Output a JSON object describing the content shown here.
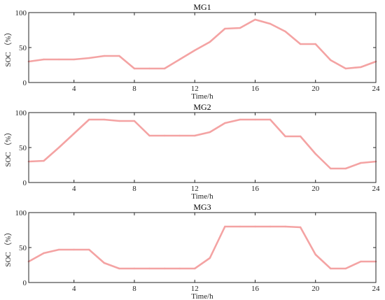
{
  "figure": {
    "line_color": "#F4A3A3"
  },
  "chart_data": [
    {
      "type": "line",
      "title": "MG1",
      "xlabel": "Time/h",
      "ylabel": "SOC （%）",
      "xlim": [
        1,
        24
      ],
      "ylim": [
        0,
        100
      ],
      "xticks": [
        4,
        8,
        12,
        16,
        20,
        24
      ],
      "yticks": [
        0,
        50,
        100
      ],
      "grid": false,
      "x": [
        1,
        2,
        3,
        4,
        5,
        6,
        7,
        8,
        9,
        10,
        11,
        12,
        13,
        14,
        15,
        16,
        17,
        18,
        19,
        20,
        21,
        22,
        23,
        24
      ],
      "series": [
        {
          "values": [
            30,
            33,
            33,
            33,
            35,
            38,
            38,
            20,
            20,
            20,
            33,
            46,
            58,
            77,
            78,
            90,
            84,
            73,
            55,
            55,
            32,
            20,
            22,
            30
          ]
        }
      ]
    },
    {
      "type": "line",
      "title": "MG2",
      "xlabel": "Time/h",
      "ylabel": "SOC （%）",
      "xlim": [
        1,
        24
      ],
      "ylim": [
        0,
        100
      ],
      "xticks": [
        4,
        8,
        12,
        16,
        20,
        24
      ],
      "yticks": [
        0,
        50,
        100
      ],
      "grid": false,
      "x": [
        1,
        2,
        3,
        4,
        5,
        6,
        7,
        8,
        9,
        10,
        11,
        12,
        13,
        14,
        15,
        16,
        17,
        18,
        19,
        20,
        21,
        22,
        23,
        24
      ],
      "series": [
        {
          "values": [
            30,
            31,
            50,
            70,
            90,
            90,
            88,
            88,
            67,
            67,
            67,
            67,
            72,
            85,
            90,
            90,
            90,
            66,
            66,
            41,
            20,
            20,
            28,
            30
          ]
        }
      ]
    },
    {
      "type": "line",
      "title": "MG3",
      "xlabel": "Time/h",
      "ylabel": "SOC （%）",
      "xlim": [
        1,
        24
      ],
      "ylim": [
        0,
        100
      ],
      "xticks": [
        4,
        8,
        12,
        16,
        20,
        24
      ],
      "yticks": [
        0,
        50,
        100
      ],
      "grid": false,
      "x": [
        1,
        2,
        3,
        4,
        5,
        6,
        7,
        8,
        9,
        10,
        11,
        12,
        13,
        14,
        15,
        16,
        17,
        18,
        19,
        20,
        21,
        22,
        23,
        24
      ],
      "series": [
        {
          "values": [
            30,
            42,
            47,
            47,
            47,
            28,
            20,
            20,
            20,
            20,
            20,
            20,
            35,
            80,
            80,
            80,
            80,
            80,
            79,
            40,
            20,
            20,
            30,
            30
          ]
        }
      ]
    }
  ]
}
